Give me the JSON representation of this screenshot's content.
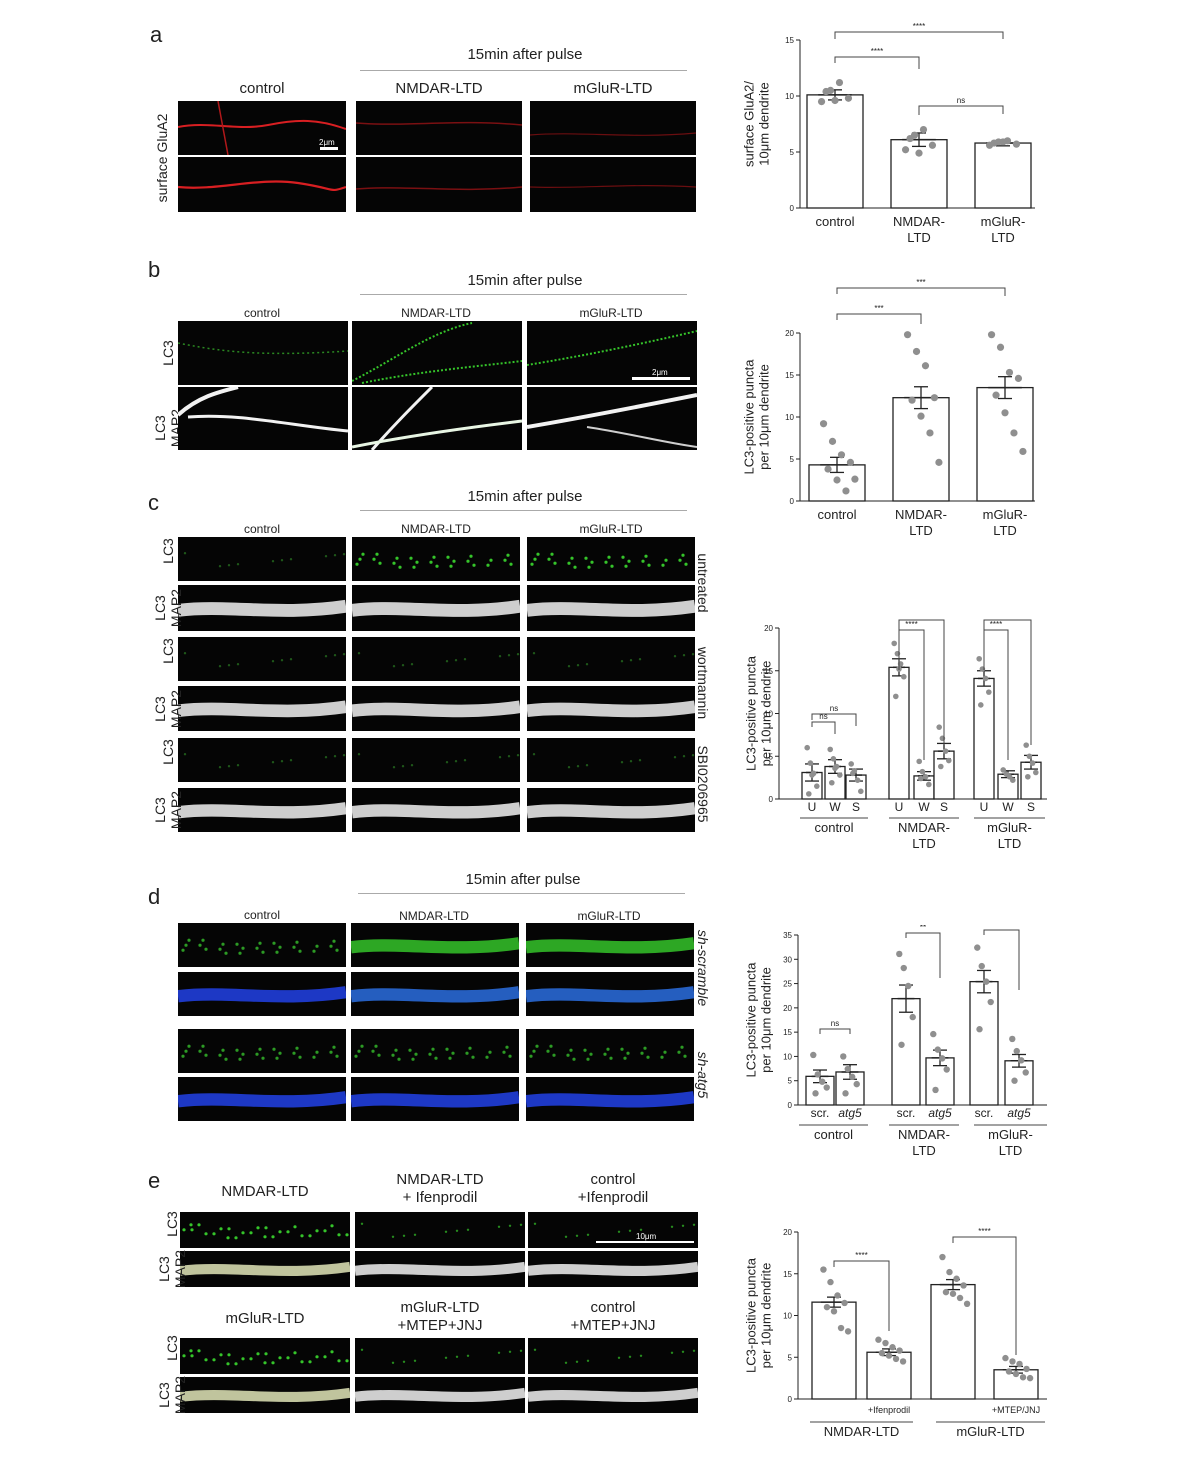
{
  "panels": {
    "a": {
      "label": "a",
      "header": "15min after pulse",
      "cols": [
        "control",
        "NMDAR-LTD",
        "mGluR-LTD"
      ],
      "row_label": "surface GluA2",
      "scale": "2μm"
    },
    "b": {
      "label": "b",
      "header": "15min after pulse",
      "cols": [
        "control",
        "NMDAR-LTD",
        "mGluR-LTD"
      ],
      "rows": [
        "LC3",
        "LC3\nMAP2"
      ],
      "scale": "2μm"
    },
    "c": {
      "label": "c",
      "header": "15min after pulse",
      "cols": [
        "control",
        "NMDAR-LTD",
        "mGluR-LTD"
      ],
      "rows": [
        "LC3",
        "LC3\nMAP2",
        "LC3",
        "LC3\nMAP2",
        "LC3",
        "LC3\nMAP2"
      ],
      "side": [
        "untreated",
        "wortmannin",
        "SBI0206965"
      ]
    },
    "d": {
      "label": "d",
      "header": "15min after pulse",
      "cols": [
        "control",
        "NMDAR-LTD",
        "mGluR-LTD"
      ],
      "side": [
        "sh-scramble",
        "sh-atg5"
      ]
    },
    "e": {
      "label": "e",
      "cols_top": [
        "NMDAR-LTD",
        "NMDAR-LTD\n+ Ifenprodil",
        "control\n+Ifenprodil"
      ],
      "cols_bottom": [
        "mGluR-LTD",
        "mGluR-LTD\n+MTEP+JNJ",
        "control\n+MTEP+JNJ"
      ],
      "rows": [
        "LC3",
        "LC3\nMAP2"
      ],
      "scale": "10μm"
    }
  },
  "chart_data": [
    {
      "id": "a",
      "type": "bar",
      "ylabel": "surface GluA2/\n10μm dendrite",
      "ylim": [
        0,
        15
      ],
      "yticks": [
        0,
        5,
        10,
        15
      ],
      "categories": [
        "control",
        "NMDAR-\nLTD",
        "mGluR-\nLTD"
      ],
      "values": [
        10.1,
        6.1,
        5.8
      ],
      "errors": [
        0.45,
        0.6,
        0.25
      ],
      "points": [
        [
          9.5,
          10.5,
          11.2,
          9.8,
          10.4,
          9.6
        ],
        [
          5.2,
          6.5,
          7.0,
          5.6,
          6.2,
          4.9
        ],
        [
          5.6,
          5.9,
          6.0,
          5.7,
          5.8,
          5.9
        ]
      ],
      "sig": [
        {
          "from": 0,
          "to": 2,
          "text": "****"
        },
        {
          "from": 0,
          "to": 1,
          "text": "****"
        },
        {
          "from": 1,
          "to": 2,
          "text": "ns"
        }
      ]
    },
    {
      "id": "b",
      "type": "bar",
      "ylabel": "LC3-positive puncta\nper 10μm dendrite",
      "ylim": [
        0,
        20
      ],
      "yticks": [
        0,
        5,
        10,
        15,
        20
      ],
      "categories": [
        "control",
        "NMDAR-\nLTD",
        "mGluR-\nLTD"
      ],
      "values": [
        4.3,
        12.3,
        13.5
      ],
      "errors": [
        0.9,
        1.3,
        1.3
      ],
      "points": [
        [
          9.2,
          7.1,
          5.5,
          4.6,
          3.8,
          2.5,
          1.2,
          2.6
        ],
        [
          19.8,
          17.8,
          16.1,
          12.3,
          12.0,
          10.1,
          8.1,
          4.6
        ],
        [
          19.8,
          18.3,
          15.3,
          14.6,
          12.6,
          10.5,
          8.1,
          5.9
        ]
      ],
      "sig": [
        {
          "from": 0,
          "to": 2,
          "text": "***"
        },
        {
          "from": 0,
          "to": 1,
          "text": "***"
        }
      ]
    },
    {
      "id": "c",
      "type": "bar",
      "ylabel": "LC3-positive puncta\nper 10μm dendrite",
      "ylim": [
        0,
        20
      ],
      "yticks": [
        0,
        5,
        10,
        15,
        20
      ],
      "categories": [
        "U",
        "W",
        "S",
        "U",
        "W",
        "S",
        "U",
        "W",
        "S"
      ],
      "groups": [
        "control",
        "NMDAR-\nLTD",
        "mGluR-\nLTD"
      ],
      "values": [
        3.1,
        3.8,
        2.8,
        15.4,
        2.7,
        5.6,
        14.1,
        2.9,
        4.3
      ],
      "errors": [
        1.0,
        0.8,
        0.7,
        1.0,
        0.5,
        0.9,
        0.9,
        0.4,
        0.8
      ],
      "points": [
        [
          6.0,
          4.2,
          3.0,
          1.5,
          0.6,
          2.8
        ],
        [
          5.8,
          4.7,
          3.8,
          2.8,
          1.9,
          3.6
        ],
        [
          4.1,
          3.3,
          2.2,
          0.9,
          3.0
        ],
        [
          18.2,
          17.0,
          15.8,
          14.3,
          12.0,
          15.2
        ],
        [
          4.4,
          3.2,
          2.6,
          1.7,
          2.4
        ],
        [
          8.4,
          7.1,
          5.6,
          4.5,
          3.8
        ],
        [
          16.4,
          15.2,
          14.1,
          12.5,
          11.0
        ],
        [
          3.4,
          2.9,
          2.6,
          2.2
        ],
        [
          6.3,
          5.0,
          4.2,
          3.1,
          2.6
        ]
      ],
      "sig": [
        {
          "from": 0,
          "to": 2,
          "text": "ns"
        },
        {
          "from": 0,
          "to": 1,
          "text": "ns"
        },
        {
          "from": 3,
          "to": 5,
          "text": "****"
        },
        {
          "from": 3,
          "to": 4,
          "text": "****"
        },
        {
          "from": 6,
          "to": 8,
          "text": "****"
        },
        {
          "from": 6,
          "to": 7,
          "text": "****"
        }
      ]
    },
    {
      "id": "d",
      "type": "bar",
      "ylabel": "LC3-positive puncta\nper 10μm dendrite",
      "ylim": [
        0,
        35
      ],
      "yticks": [
        0,
        5,
        10,
        15,
        20,
        25,
        30,
        35
      ],
      "categories": [
        "scr.",
        "atg5",
        "scr.",
        "atg5",
        "scr.",
        "atg5"
      ],
      "groups": [
        "control",
        "NMDAR-\nLTD",
        "mGluR-\nLTD"
      ],
      "values": [
        5.9,
        6.8,
        21.9,
        9.7,
        25.4,
        9.1
      ],
      "errors": [
        1.3,
        1.5,
        2.8,
        1.6,
        2.3,
        1.3
      ],
      "points": [
        [
          10.3,
          6.3,
          4.8,
          3.6,
          2.4
        ],
        [
          10.0,
          7.4,
          5.8,
          4.3,
          2.4
        ],
        [
          31.1,
          28.2,
          24.5,
          18.1,
          12.4
        ],
        [
          14.6,
          11.4,
          9.6,
          7.3,
          3.1
        ],
        [
          32.4,
          28.6,
          25.4,
          21.2,
          15.6
        ],
        [
          13.6,
          11.1,
          9.2,
          6.7,
          5.0
        ]
      ],
      "sig": [
        {
          "from": 0,
          "to": 1,
          "text": "ns"
        },
        {
          "from": 2,
          "to": 3,
          "text": "**"
        },
        {
          "from": 4,
          "to": 5,
          "text": "****"
        }
      ]
    },
    {
      "id": "e",
      "type": "bar",
      "ylabel": "LC3-positive puncta\nper 10μm dendrite",
      "ylim": [
        0,
        20
      ],
      "yticks": [
        0,
        5,
        10,
        15,
        20
      ],
      "categories": [
        "",
        "+Ifenprodil",
        "",
        "+MTEP/JNJ"
      ],
      "groups": [
        "NMDAR-LTD",
        "mGluR-LTD"
      ],
      "values": [
        11.6,
        5.6,
        13.7,
        3.5
      ],
      "errors": [
        0.6,
        0.4,
        0.6,
        0.4
      ],
      "points": [
        [
          15.5,
          14.0,
          12.4,
          11.5,
          11.0,
          10.5,
          8.5,
          8.1
        ],
        [
          7.1,
          6.7,
          6.2,
          5.8,
          5.5,
          5.2,
          4.8,
          4.5
        ],
        [
          17.0,
          15.2,
          14.4,
          13.6,
          12.8,
          12.6,
          12.1,
          11.4
        ],
        [
          4.9,
          4.5,
          4.2,
          3.6,
          3.3,
          3.0,
          2.6,
          2.5
        ]
      ],
      "sig": [
        {
          "from": 0,
          "to": 1,
          "text": "****"
        },
        {
          "from": 2,
          "to": 3,
          "text": "****"
        }
      ]
    }
  ],
  "colors": {
    "red": "#d81f22",
    "green": "#35c42a",
    "blue": "#2242e8",
    "white": "#f2f2f2",
    "dot": "#8f8f8f"
  }
}
